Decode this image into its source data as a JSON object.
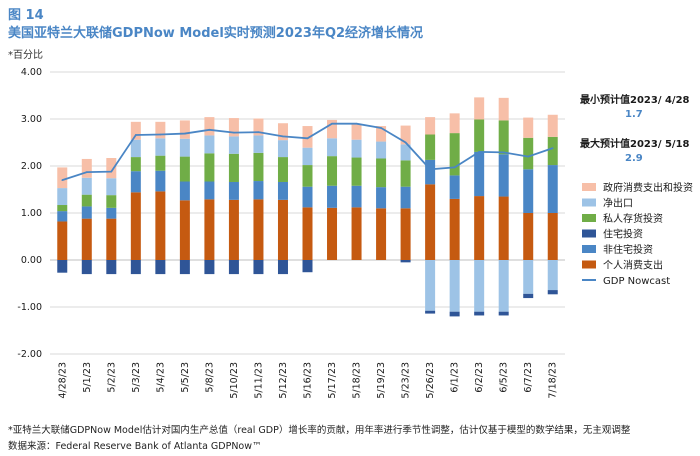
{
  "figure_label": "图 14",
  "title": "美国亚特兰大联储GDPNow Model实时预测2023年Q2经济增长情况",
  "unit_label": "*百分比",
  "annotations": {
    "min": {
      "label": "最小预计值2023/ 4/28",
      "value": "1.7"
    },
    "max": {
      "label": "最大预计值2023/ 5/18",
      "value": "2.9"
    }
  },
  "footnote": "*亚特兰大联储GDPNow Model估计对国内生产总值（real GDP）增长率的贡献，用年率进行季节性调整，估计仅基于模型的数学结果，无主观调整",
  "source": "数据来源：Federal Reserve Bank of Atlanta GDPNow™",
  "colors": {
    "gov": "#f7bfa8",
    "netexp": "#9dc3e6",
    "inventory": "#70ad47",
    "residential": "#2f5597",
    "nonres": "#4a86c5",
    "consumption": "#c55a11",
    "line": "#4a86c5",
    "title": "#4a86c5"
  },
  "chart_data": {
    "type": "bar",
    "stacked": true,
    "ylim": [
      -2.0,
      4.0
    ],
    "yticks": [
      "4.00",
      "3.00",
      "2.00",
      "1.00",
      "0.00",
      "-1.00",
      "-2.00"
    ],
    "ytick_values": [
      4,
      3,
      2,
      1,
      0,
      -1,
      -2
    ],
    "categories": [
      "4/28/23",
      "5/1/23",
      "5/2/23",
      "5/3/23",
      "5/4/23",
      "5/5/23",
      "5/8/23",
      "5/10/23",
      "5/11/23",
      "5/12/23",
      "5/16/23",
      "5/17/23",
      "5/18/23",
      "5/19/23",
      "5/23/23",
      "5/26/23",
      "6/1/23",
      "6/2/23",
      "6/5/23",
      "6/7/23",
      "7/18/23"
    ],
    "series": [
      {
        "name": "个人消费支出",
        "key": "consumption",
        "values": [
          0.82,
          0.88,
          0.88,
          1.44,
          1.46,
          1.27,
          1.29,
          1.28,
          1.29,
          1.28,
          1.12,
          1.11,
          1.12,
          1.1,
          1.1,
          1.61,
          1.3,
          1.36,
          1.35,
          1.0,
          1.0
        ]
      },
      {
        "name": "非住宅投资",
        "key": "nonres",
        "values": [
          0.22,
          0.26,
          0.23,
          0.45,
          0.44,
          0.4,
          0.38,
          0.38,
          0.39,
          0.38,
          0.44,
          0.47,
          0.46,
          0.45,
          0.46,
          0.52,
          0.5,
          0.94,
          0.9,
          0.93,
          1.02
        ]
      },
      {
        "name": "住宅投资",
        "key": "residential",
        "values": [
          0.0,
          0.0,
          0.0,
          0.0,
          0.0,
          0.0,
          0.0,
          0.0,
          0.0,
          0.0,
          0.0,
          0.0,
          0.0,
          0.0,
          0.0,
          0.0,
          0.0,
          0.0,
          0.0,
          0.0,
          0.0
        ]
      },
      {
        "name": "私人存货投资",
        "key": "inventory",
        "values": [
          0.13,
          0.25,
          0.27,
          0.3,
          0.32,
          0.53,
          0.6,
          0.6,
          0.6,
          0.53,
          0.46,
          0.63,
          0.6,
          0.61,
          0.56,
          0.54,
          0.9,
          0.69,
          0.72,
          0.67,
          0.6
        ]
      },
      {
        "name": "净出口",
        "key": "netexp",
        "values": [
          0.36,
          0.36,
          0.36,
          0.37,
          0.37,
          0.38,
          0.38,
          0.37,
          0.37,
          0.36,
          0.37,
          0.38,
          0.38,
          0.36,
          0.34,
          0.0,
          0.0,
          0.0,
          0.0,
          0.0,
          0.0
        ]
      },
      {
        "name": "政府消费支出和投资",
        "key": "gov",
        "values": [
          0.44,
          0.4,
          0.43,
          0.38,
          0.35,
          0.39,
          0.39,
          0.39,
          0.36,
          0.36,
          0.46,
          0.39,
          0.33,
          0.33,
          0.4,
          0.37,
          0.42,
          0.47,
          0.48,
          0.43,
          0.47
        ]
      }
    ],
    "negatives": [
      {
        "name": "净出口",
        "key": "netexp",
        "values": [
          0,
          0,
          0,
          0,
          0,
          0,
          0,
          0,
          0,
          0,
          0,
          0,
          0,
          0,
          0,
          -1.08,
          -1.1,
          -1.1,
          -1.1,
          -0.72,
          -0.64
        ]
      },
      {
        "name": "住宅投资",
        "key": "residential",
        "values": [
          -0.27,
          -0.3,
          -0.3,
          -0.3,
          -0.3,
          -0.3,
          -0.3,
          -0.3,
          -0.3,
          -0.3,
          -0.26,
          0.0,
          0.0,
          0.0,
          -0.05,
          -0.06,
          -0.1,
          -0.08,
          -0.08,
          -0.09,
          -0.09
        ]
      }
    ],
    "line": {
      "name": "GDP Nowcast",
      "values": [
        1.7,
        1.87,
        1.88,
        2.66,
        2.67,
        2.69,
        2.77,
        2.71,
        2.72,
        2.63,
        2.59,
        2.9,
        2.9,
        2.81,
        2.5,
        1.93,
        1.97,
        2.3,
        2.29,
        2.2,
        2.38
      ]
    },
    "legend": [
      {
        "label": "政府消费支出和投资",
        "key": "gov",
        "kind": "bar"
      },
      {
        "label": "净出口",
        "key": "netexp",
        "kind": "bar"
      },
      {
        "label": "私人存货投资",
        "key": "inventory",
        "kind": "bar"
      },
      {
        "label": "住宅投资",
        "key": "residential",
        "kind": "bar"
      },
      {
        "label": "非住宅投资",
        "key": "nonres",
        "kind": "bar"
      },
      {
        "label": "个人消费支出",
        "key": "consumption",
        "kind": "bar"
      },
      {
        "label": "GDP  Nowcast",
        "key": "line",
        "kind": "line"
      }
    ]
  }
}
